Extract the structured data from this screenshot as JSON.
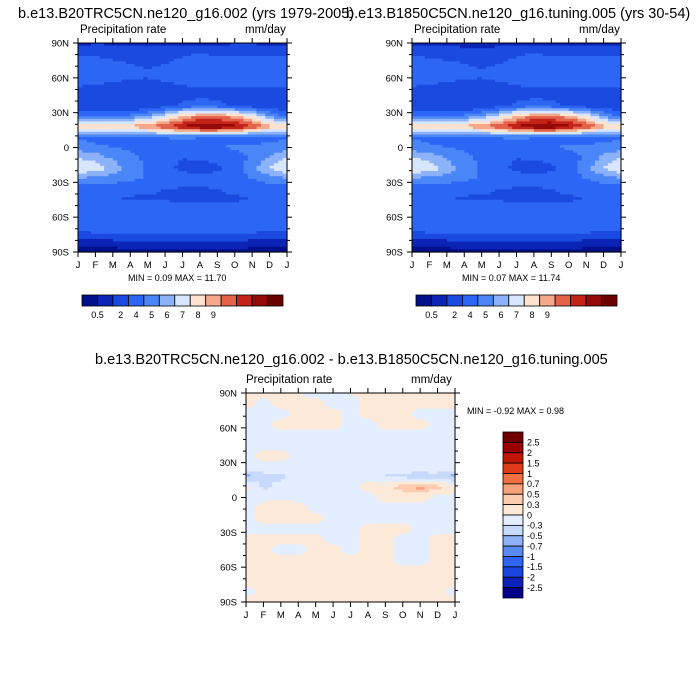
{
  "chart_data": [
    {
      "type": "heatmap",
      "title": "b.e13.B20TRC5CN.ne120_g16.002 (yrs 1979-2005)",
      "left_label": "Precipitation rate",
      "right_label": "mm/day",
      "stats": "MIN =  0.09 MAX =  11.70",
      "x_ticks": [
        "J",
        "F",
        "M",
        "A",
        "M",
        "J",
        "J",
        "A",
        "S",
        "O",
        "N",
        "D",
        "J"
      ],
      "y_ticks": [
        "90N",
        "60N",
        "30N",
        "0",
        "30S",
        "60S",
        "90S"
      ],
      "colorbar_labels": [
        "0.5",
        "2",
        "4",
        "5",
        "6",
        "7",
        "8",
        "9"
      ],
      "levels": [
        0.5,
        1,
        2,
        3,
        4,
        5,
        6,
        7,
        8,
        9,
        10,
        11
      ],
      "field": [
        [
          0.8,
          0.9,
          0.9,
          0.8,
          0.7,
          0.6,
          0.6,
          0.7,
          0.8,
          0.9,
          0.9,
          0.8,
          0.8
        ],
        [
          1.8,
          1.8,
          1.6,
          1.4,
          1.5,
          1.7,
          1.9,
          2.0,
          1.9,
          1.8,
          1.8,
          1.9,
          1.8
        ],
        [
          2.5,
          2.4,
          2.2,
          2.0,
          1.9,
          2.0,
          2.2,
          2.3,
          2.4,
          2.6,
          2.6,
          2.5,
          2.5
        ],
        [
          2.6,
          2.5,
          2.3,
          2.2,
          2.1,
          2.3,
          2.4,
          2.5,
          2.5,
          2.6,
          2.6,
          2.6,
          2.6
        ],
        [
          2.1,
          2.0,
          1.9,
          1.8,
          1.8,
          1.9,
          2.0,
          2.1,
          2.1,
          2.2,
          2.2,
          2.1,
          2.1
        ],
        [
          1.4,
          1.3,
          1.3,
          1.3,
          1.4,
          1.6,
          1.7,
          1.8,
          1.7,
          1.6,
          1.5,
          1.4,
          1.4
        ],
        [
          1.1,
          1.1,
          1.0,
          1.0,
          1.2,
          1.6,
          2.2,
          2.5,
          2.3,
          1.9,
          1.5,
          1.2,
          1.1
        ],
        [
          2.6,
          2.6,
          2.8,
          3.2,
          4.0,
          5.5,
          7.0,
          8.0,
          8.0,
          7.5,
          6.0,
          4.0,
          2.6
        ],
        [
          6.5,
          6.5,
          6.8,
          7.2,
          8.0,
          9.0,
          10.0,
          11.0,
          11.2,
          10.5,
          9.0,
          7.5,
          6.5
        ],
        [
          2.9,
          2.6,
          2.5,
          2.6,
          2.8,
          3.0,
          3.1,
          3.0,
          2.8,
          2.6,
          2.4,
          2.6,
          2.9
        ],
        [
          3.5,
          3.2,
          3.0,
          2.9,
          2.8,
          2.7,
          2.8,
          2.9,
          3.0,
          3.1,
          3.2,
          3.4,
          3.5
        ],
        [
          5.0,
          4.6,
          3.8,
          3.2,
          2.8,
          2.3,
          2.0,
          2.1,
          2.2,
          2.6,
          3.2,
          4.2,
          5.0
        ],
        [
          6.0,
          5.6,
          4.6,
          3.6,
          2.9,
          2.2,
          1.8,
          1.7,
          1.8,
          2.4,
          3.6,
          5.0,
          6.0
        ],
        [
          3.8,
          3.7,
          3.5,
          3.2,
          2.9,
          2.6,
          2.4,
          2.3,
          2.4,
          2.7,
          3.0,
          3.5,
          3.8
        ],
        [
          2.4,
          2.4,
          2.3,
          2.2,
          2.1,
          2.0,
          1.9,
          1.9,
          2.0,
          2.1,
          2.2,
          2.3,
          2.4
        ],
        [
          2.0,
          2.0,
          2.0,
          1.9,
          1.9,
          1.9,
          1.8,
          1.8,
          1.9,
          1.9,
          2.0,
          2.0,
          2.0
        ],
        [
          2.4,
          2.5,
          2.6,
          2.7,
          2.8,
          2.8,
          2.8,
          2.8,
          2.7,
          2.6,
          2.5,
          2.4,
          2.4
        ],
        [
          2.6,
          2.7,
          2.8,
          2.9,
          3.0,
          3.0,
          3.0,
          3.0,
          2.9,
          2.8,
          2.7,
          2.6,
          2.6
        ],
        [
          2.1,
          2.2,
          2.3,
          2.4,
          2.4,
          2.5,
          2.5,
          2.4,
          2.4,
          2.3,
          2.2,
          2.1,
          2.1
        ],
        [
          0.8,
          0.8,
          0.8,
          0.9,
          0.9,
          0.9,
          0.9,
          0.9,
          0.9,
          0.9,
          0.8,
          0.8,
          0.8
        ],
        [
          0.3,
          0.3,
          0.3,
          0.3,
          0.3,
          0.3,
          0.3,
          0.3,
          0.3,
          0.3,
          0.3,
          0.3,
          0.3
        ]
      ]
    },
    {
      "type": "heatmap",
      "title": "b.e13.B1850C5CN.ne120_g16.tuning.005 (yrs 30-54)",
      "left_label": "Precipitation rate",
      "right_label": "mm/day",
      "stats": "MIN =  0.07 MAX =  11.74",
      "x_ticks": [
        "J",
        "F",
        "M",
        "A",
        "M",
        "J",
        "J",
        "A",
        "S",
        "O",
        "N",
        "D",
        "J"
      ],
      "y_ticks": [
        "90N",
        "60N",
        "30N",
        "0",
        "30S",
        "60S",
        "90S"
      ],
      "colorbar_labels": [
        "0.5",
        "2",
        "4",
        "5",
        "6",
        "7",
        "8",
        "9"
      ],
      "levels": [
        0.5,
        1,
        2,
        3,
        4,
        5,
        6,
        7,
        8,
        9,
        10,
        11
      ],
      "field": [
        [
          0.7,
          0.8,
          0.8,
          0.7,
          0.6,
          0.6,
          0.6,
          0.7,
          0.8,
          0.8,
          0.8,
          0.7,
          0.7
        ],
        [
          1.8,
          1.7,
          1.6,
          1.4,
          1.5,
          1.7,
          1.9,
          2.0,
          1.9,
          1.8,
          1.8,
          1.9,
          1.8
        ],
        [
          2.5,
          2.4,
          2.2,
          2.0,
          1.9,
          2.0,
          2.2,
          2.3,
          2.4,
          2.6,
          2.6,
          2.5,
          2.5
        ],
        [
          2.6,
          2.5,
          2.3,
          2.2,
          2.1,
          2.3,
          2.4,
          2.5,
          2.5,
          2.6,
          2.6,
          2.6,
          2.6
        ],
        [
          2.1,
          2.0,
          1.9,
          1.8,
          1.8,
          1.9,
          2.0,
          2.1,
          2.1,
          2.2,
          2.2,
          2.1,
          2.1
        ],
        [
          1.4,
          1.3,
          1.3,
          1.3,
          1.4,
          1.6,
          1.7,
          1.8,
          1.7,
          1.6,
          1.5,
          1.4,
          1.4
        ],
        [
          1.1,
          1.1,
          1.0,
          1.0,
          1.2,
          1.6,
          2.2,
          2.5,
          2.3,
          1.9,
          1.5,
          1.2,
          1.1
        ],
        [
          2.6,
          2.6,
          2.8,
          3.2,
          4.0,
          5.5,
          7.0,
          8.0,
          8.0,
          7.5,
          6.0,
          4.0,
          2.6
        ],
        [
          6.5,
          6.5,
          6.8,
          7.2,
          8.0,
          9.0,
          10.0,
          11.0,
          11.3,
          10.4,
          9.0,
          7.5,
          6.5
        ],
        [
          2.9,
          2.6,
          2.5,
          2.6,
          2.8,
          3.0,
          3.1,
          3.0,
          2.8,
          2.6,
          2.4,
          2.6,
          2.9
        ],
        [
          3.5,
          3.2,
          3.0,
          2.9,
          2.8,
          2.7,
          2.8,
          2.9,
          3.0,
          3.1,
          3.2,
          3.4,
          3.5
        ],
        [
          5.1,
          4.7,
          3.8,
          3.2,
          2.8,
          2.3,
          2.0,
          2.1,
          2.2,
          2.6,
          3.2,
          4.3,
          5.1
        ],
        [
          6.0,
          5.6,
          4.6,
          3.6,
          2.9,
          2.2,
          1.8,
          1.7,
          1.8,
          2.4,
          3.6,
          5.0,
          6.0
        ],
        [
          3.8,
          3.7,
          3.5,
          3.2,
          2.9,
          2.6,
          2.4,
          2.3,
          2.4,
          2.7,
          3.0,
          3.5,
          3.8
        ],
        [
          2.4,
          2.4,
          2.3,
          2.2,
          2.1,
          2.0,
          1.9,
          1.9,
          2.0,
          2.1,
          2.2,
          2.3,
          2.4
        ],
        [
          2.0,
          2.0,
          2.0,
          1.9,
          1.9,
          1.9,
          1.8,
          1.8,
          1.9,
          1.9,
          2.0,
          2.0,
          2.0
        ],
        [
          2.4,
          2.5,
          2.6,
          2.7,
          2.8,
          2.8,
          2.8,
          2.8,
          2.7,
          2.6,
          2.5,
          2.4,
          2.4
        ],
        [
          2.6,
          2.7,
          2.8,
          2.9,
          3.0,
          3.0,
          3.0,
          3.0,
          2.9,
          2.8,
          2.7,
          2.6,
          2.6
        ],
        [
          2.1,
          2.2,
          2.3,
          2.4,
          2.4,
          2.5,
          2.5,
          2.4,
          2.4,
          2.3,
          2.2,
          2.1,
          2.1
        ],
        [
          0.8,
          0.8,
          0.8,
          0.9,
          0.9,
          0.9,
          0.9,
          0.9,
          0.9,
          0.9,
          0.8,
          0.8,
          0.8
        ],
        [
          0.3,
          0.3,
          0.3,
          0.3,
          0.3,
          0.3,
          0.3,
          0.3,
          0.3,
          0.3,
          0.3,
          0.3,
          0.3
        ]
      ]
    },
    {
      "type": "heatmap",
      "title": "b.e13.B20TRC5CN.ne120_g16.002 - b.e13.B1850C5CN.ne120_g16.tuning.005",
      "left_label": "Precipitation rate",
      "right_label": "mm/day",
      "stats": "MIN =  -0.92 MAX =   0.98",
      "x_ticks": [
        "J",
        "F",
        "M",
        "A",
        "M",
        "J",
        "J",
        "A",
        "S",
        "O",
        "N",
        "D",
        "J"
      ],
      "y_ticks": [
        "90N",
        "60N",
        "30N",
        "0",
        "30S",
        "60S",
        "90S"
      ],
      "colorbar_labels": [
        "2.5",
        "2",
        "1.5",
        "1",
        "0.7",
        "0.5",
        "0.3",
        "0",
        "-0.3",
        "-0.5",
        "-0.7",
        "-1",
        "-1.5",
        "-2",
        "-2.5"
      ],
      "levels": [
        -2.5,
        -2,
        -1.5,
        -1,
        -0.7,
        -0.5,
        -0.3,
        0,
        0.3,
        0.5,
        0.7,
        1,
        1.5,
        2,
        2.5
      ],
      "field": [
        [
          0.1,
          0.1,
          0.0,
          0.0,
          -0.1,
          -0.1,
          0.0,
          0.1,
          0.1,
          0.0,
          0.0,
          0.1,
          0.1
        ],
        [
          0.1,
          -0.1,
          0.1,
          0.1,
          0.1,
          -0.1,
          -0.1,
          0.1,
          0.1,
          0.1,
          0.1,
          0.1,
          0.1
        ],
        [
          -0.1,
          -0.1,
          -0.1,
          0.1,
          0.1,
          0.1,
          -0.1,
          0.1,
          0.1,
          0.1,
          -0.1,
          -0.1,
          -0.1
        ],
        [
          -0.1,
          -0.1,
          0.1,
          0.1,
          0.1,
          0.1,
          -0.1,
          -0.1,
          0.1,
          0.1,
          0.1,
          -0.1,
          -0.1
        ],
        [
          -0.1,
          -0.1,
          -0.1,
          -0.1,
          -0.1,
          -0.1,
          -0.1,
          -0.1,
          -0.1,
          -0.1,
          -0.1,
          -0.1,
          -0.1
        ],
        [
          -0.1,
          -0.1,
          -0.1,
          -0.1,
          -0.1,
          -0.1,
          -0.1,
          -0.1,
          -0.1,
          -0.1,
          -0.1,
          -0.1,
          -0.1
        ],
        [
          -0.1,
          0.1,
          0.1,
          -0.1,
          -0.1,
          -0.1,
          -0.1,
          -0.1,
          -0.1,
          -0.1,
          -0.1,
          -0.1,
          -0.1
        ],
        [
          -0.1,
          -0.1,
          -0.1,
          -0.1,
          -0.1,
          -0.1,
          -0.1,
          -0.1,
          -0.1,
          -0.1,
          -0.1,
          -0.1,
          -0.1
        ],
        [
          -0.6,
          -0.4,
          -0.35,
          -0.2,
          -0.1,
          -0.1,
          -0.1,
          -0.1,
          -0.35,
          -0.4,
          -0.45,
          -0.4,
          -0.6
        ],
        [
          0.1,
          -0.35,
          -0.2,
          -0.1,
          -0.1,
          -0.1,
          -0.1,
          0.1,
          0.2,
          0.45,
          0.6,
          0.4,
          0.1
        ],
        [
          -0.1,
          -0.1,
          -0.1,
          -0.1,
          -0.1,
          -0.1,
          -0.1,
          -0.1,
          0.1,
          0.1,
          0.1,
          -0.1,
          -0.1
        ],
        [
          -0.1,
          0.1,
          0.35,
          0.1,
          -0.1,
          -0.1,
          -0.1,
          -0.1,
          -0.1,
          -0.1,
          -0.1,
          -0.1,
          -0.1
        ],
        [
          -0.1,
          0.1,
          0.1,
          0.1,
          0.1,
          -0.1,
          -0.1,
          -0.1,
          -0.1,
          -0.1,
          -0.1,
          -0.1,
          -0.1
        ],
        [
          -0.1,
          -0.1,
          -0.1,
          -0.1,
          -0.1,
          -0.1,
          -0.1,
          0.1,
          0.1,
          0.1,
          -0.1,
          -0.1,
          -0.1
        ],
        [
          0.1,
          0.1,
          0.1,
          0.1,
          0.1,
          -0.1,
          -0.1,
          0.1,
          0.1,
          -0.1,
          -0.1,
          0.1,
          0.1
        ],
        [
          0.1,
          0.1,
          -0.1,
          -0.1,
          0.1,
          0.1,
          -0.1,
          0.1,
          0.1,
          -0.1,
          -0.1,
          0.1,
          0.1
        ],
        [
          0.1,
          0.1,
          0.1,
          0.1,
          0.1,
          0.1,
          0.1,
          0.1,
          0.1,
          -0.1,
          -0.1,
          0.1,
          0.1
        ],
        [
          0.1,
          0.1,
          0.1,
          0.1,
          0.1,
          0.1,
          0.1,
          0.1,
          0.1,
          0.1,
          0.1,
          0.1,
          0.1
        ],
        [
          0.1,
          0.1,
          0.1,
          0.1,
          0.1,
          0.1,
          0.1,
          0.1,
          0.1,
          0.1,
          0.1,
          0.1,
          0.1
        ],
        [
          -0.1,
          0.1,
          0.1,
          0.1,
          0.1,
          0.1,
          0.1,
          0.1,
          0.1,
          0.1,
          0.1,
          0.1,
          -0.1
        ],
        [
          0.1,
          0.1,
          0.1,
          0.1,
          0.1,
          0.1,
          0.1,
          0.1,
          0.1,
          0.1,
          0.1,
          0.1,
          0.1
        ]
      ]
    }
  ],
  "palettes": {
    "seq": [
      "#000f8a",
      "#0b24b5",
      "#1a4ae0",
      "#2d66f5",
      "#4b86f7",
      "#8cb2fa",
      "#d7e6fd",
      "#fde3cf",
      "#f5a98c",
      "#e4624a",
      "#c32318",
      "#930a08",
      "#6b0000"
    ],
    "div": [
      "#000088",
      "#0a21b8",
      "#1a45df",
      "#2f65f0",
      "#5a8af5",
      "#90b1f7",
      "#c8dafc",
      "#e2edff",
      "#fde9d8",
      "#fcccb0",
      "#f8a27c",
      "#f17045",
      "#e03a18",
      "#c11606",
      "#990000",
      "#6e0000"
    ]
  }
}
